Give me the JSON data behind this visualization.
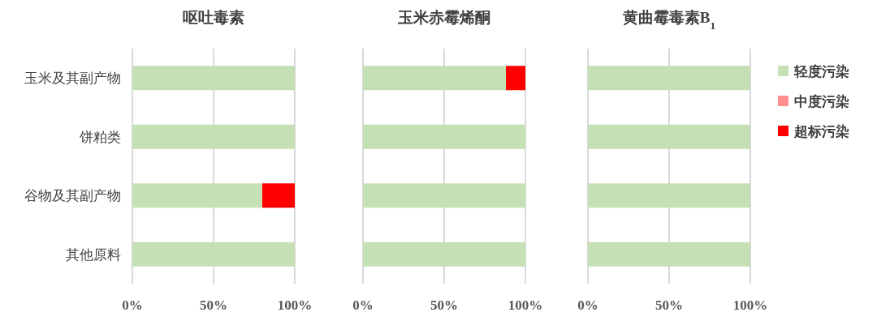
{
  "chart_data": [
    {
      "type": "bar",
      "orientation": "horizontal",
      "stacked": true,
      "title": "呕吐毒素",
      "categories": [
        "玉米及其副产物",
        "饼粕类",
        "谷物及其副产物",
        "其他原料"
      ],
      "series": [
        {
          "color": "#c5e0b4",
          "values": [
            100,
            100,
            80,
            100
          ]
        },
        {
          "color": "#ff0000",
          "values": [
            0,
            0,
            20,
            0
          ]
        }
      ],
      "xlim": [
        0,
        100
      ],
      "xticks": [
        {
          "value": 0,
          "label": "0%"
        },
        {
          "value": 50,
          "label": "50%"
        },
        {
          "value": 100,
          "label": "100%"
        }
      ],
      "grid": "x"
    },
    {
      "type": "bar",
      "orientation": "horizontal",
      "stacked": true,
      "title": "玉米赤霉烯酮",
      "categories": [
        null,
        null,
        null,
        null
      ],
      "series": [
        {
          "color": "#c5e0b4",
          "values": [
            88,
            100,
            100,
            100
          ]
        },
        {
          "color": "#ff0000",
          "values": [
            12,
            0,
            0,
            0
          ]
        }
      ],
      "xlim": [
        0,
        100
      ],
      "xticks": [
        {
          "value": 0,
          "label": "0%"
        },
        {
          "value": 50,
          "label": "50%"
        },
        {
          "value": 100,
          "label": "100%"
        }
      ],
      "grid": "x",
      "tick_labels": "x"
    },
    {
      "type": "bar",
      "orientation": "horizontal",
      "stacked": true,
      "title": "黄曲霉毒素B$_{1}$",
      "categories": [
        null,
        null,
        null,
        null
      ],
      "series": [
        {
          "name": "轻度污染",
          "color": "#c5e0b4",
          "values": [
            100,
            100,
            100,
            100
          ]
        },
        {
          "name": "中度污染",
          "color": "#ff8f8f",
          "values": [
            0,
            0,
            0,
            0
          ]
        },
        {
          "name": "超标污染",
          "color": "#ff0000",
          "values": [
            0,
            0,
            0,
            0
          ]
        }
      ],
      "xlim": [
        0,
        100
      ],
      "xticks": [
        {
          "value": 0,
          "label": "0%"
        },
        {
          "value": 50,
          "label": "50%"
        },
        {
          "value": 100,
          "label": "100%"
        }
      ],
      "grid": "x",
      "legend": "right",
      "tick_labels": "x"
    }
  ]
}
